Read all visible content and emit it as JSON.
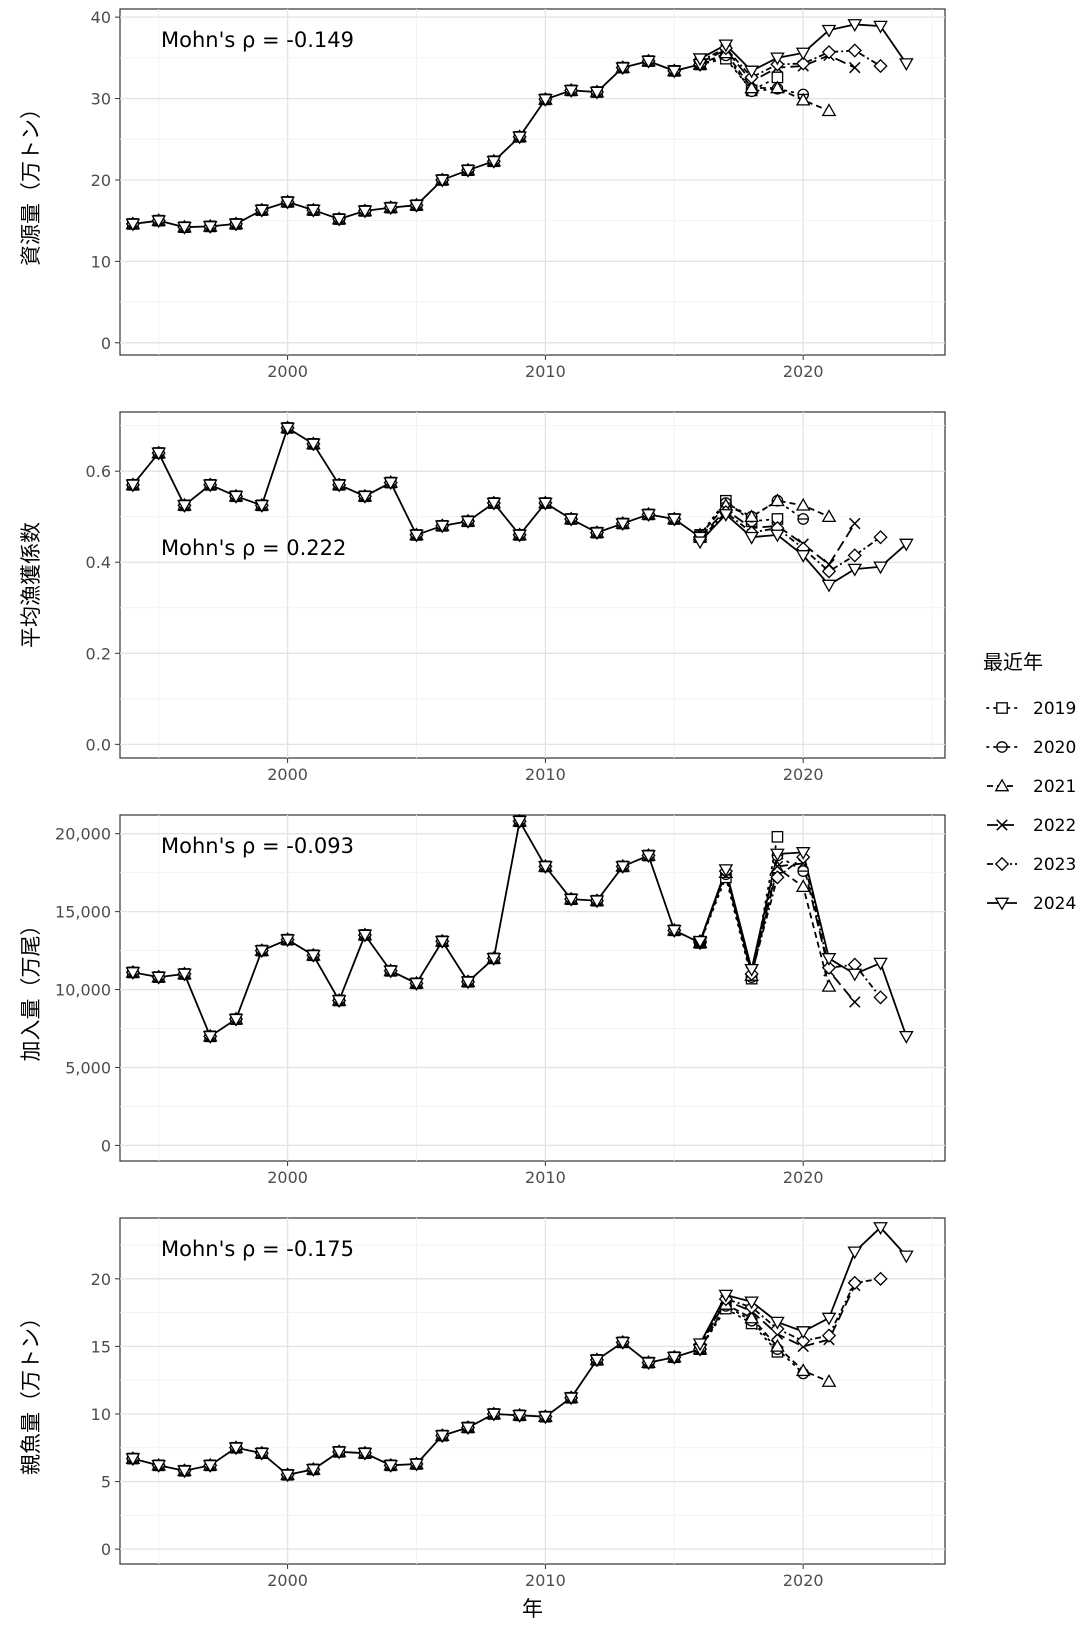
{
  "chart_data": [
    {
      "type": "line",
      "ylabel": "資源量（万トン）",
      "xlabel": "",
      "annotation": "Mohn's ρ = -0.149",
      "annotation_pos": "top-left",
      "xlim": [
        1993.5,
        2025.5
      ],
      "ylim": [
        -1.5,
        41
      ],
      "xticks": [
        2000,
        2010,
        2020
      ],
      "yticks": [
        0,
        10,
        20,
        30,
        40
      ],
      "ytick_labels": [
        "0",
        "10",
        "20",
        "30",
        "40"
      ],
      "grid": true,
      "common_x": [
        1994,
        1995,
        1996,
        1997,
        1998,
        1999,
        2000,
        2001,
        2002,
        2003,
        2004,
        2005,
        2006,
        2007,
        2008,
        2009,
        2010,
        2011,
        2012,
        2013,
        2014,
        2015,
        2016
      ],
      "common_y": [
        14.6,
        15.0,
        14.2,
        14.3,
        14.6,
        16.3,
        17.3,
        16.3,
        15.2,
        16.2,
        16.6,
        16.9,
        20.0,
        21.2,
        22.3,
        25.3,
        29.9,
        31.0,
        30.8,
        33.8,
        34.6,
        33.4,
        34.2
      ],
      "series": [
        {
          "name": "2019",
          "x": [
            2016,
            2017,
            2018,
            2019
          ],
          "y": [
            34.2,
            34.9,
            31.0,
            32.6
          ]
        },
        {
          "name": "2020",
          "x": [
            2016,
            2017,
            2018,
            2019,
            2020
          ],
          "y": [
            34.2,
            35.3,
            30.9,
            31.2,
            30.5
          ]
        },
        {
          "name": "2021",
          "x": [
            2016,
            2017,
            2018,
            2019,
            2020,
            2021
          ],
          "y": [
            34.2,
            35.6,
            31.3,
            31.3,
            29.8,
            28.5
          ]
        },
        {
          "name": "2022",
          "x": [
            2016,
            2017,
            2018,
            2019,
            2020,
            2021,
            2022
          ],
          "y": [
            34.4,
            36.0,
            32.1,
            33.8,
            34.0,
            35.3,
            33.8
          ]
        },
        {
          "name": "2023",
          "x": [
            2016,
            2017,
            2018,
            2019,
            2020,
            2021,
            2022,
            2023
          ],
          "y": [
            34.6,
            36.2,
            32.6,
            34.2,
            34.3,
            35.7,
            35.9,
            34.0
          ]
        },
        {
          "name": "2024",
          "x": [
            2016,
            2017,
            2018,
            2019,
            2020,
            2021,
            2022,
            2023,
            2024
          ],
          "y": [
            34.9,
            36.6,
            33.4,
            35.0,
            35.6,
            38.4,
            39.1,
            38.9,
            34.3
          ]
        }
      ]
    },
    {
      "type": "line",
      "ylabel": "平均漁獲係数",
      "xlabel": "",
      "annotation": "Mohn's ρ = 0.222",
      "annotation_pos": "middle-left",
      "xlim": [
        1993.5,
        2025.5
      ],
      "ylim": [
        -0.03,
        0.73
      ],
      "xticks": [
        2000,
        2010,
        2020
      ],
      "yticks": [
        0.0,
        0.2,
        0.4,
        0.6
      ],
      "ytick_labels": [
        "0.0",
        "0.2",
        "0.4",
        "0.6"
      ],
      "grid": true,
      "common_x": [
        1994,
        1995,
        1996,
        1997,
        1998,
        1999,
        2000,
        2001,
        2002,
        2003,
        2004,
        2005,
        2006,
        2007,
        2008,
        2009,
        2010,
        2011,
        2012,
        2013,
        2014,
        2015,
        2016
      ],
      "common_y": [
        0.57,
        0.64,
        0.525,
        0.57,
        0.545,
        0.525,
        0.695,
        0.66,
        0.57,
        0.545,
        0.575,
        0.46,
        0.48,
        0.49,
        0.53,
        0.46,
        0.53,
        0.495,
        0.465,
        0.485,
        0.505,
        0.495,
        0.455
      ],
      "series": [
        {
          "name": "2019",
          "x": [
            2016,
            2017,
            2018,
            2019
          ],
          "y": [
            0.46,
            0.535,
            0.49,
            0.495
          ]
        },
        {
          "name": "2020",
          "x": [
            2016,
            2017,
            2018,
            2019,
            2020
          ],
          "y": [
            0.46,
            0.53,
            0.5,
            0.535,
            0.495
          ]
        },
        {
          "name": "2021",
          "x": [
            2016,
            2017,
            2018,
            2019,
            2020,
            2021
          ],
          "y": [
            0.46,
            0.525,
            0.5,
            0.535,
            0.525,
            0.5
          ]
        },
        {
          "name": "2022",
          "x": [
            2016,
            2017,
            2018,
            2019,
            2020,
            2021,
            2022
          ],
          "y": [
            0.455,
            0.515,
            0.475,
            0.48,
            0.44,
            0.395,
            0.485
          ]
        },
        {
          "name": "2023",
          "x": [
            2016,
            2017,
            2018,
            2019,
            2020,
            2021,
            2022,
            2023
          ],
          "y": [
            0.45,
            0.51,
            0.465,
            0.475,
            0.43,
            0.38,
            0.415,
            0.455
          ]
        },
        {
          "name": "2024",
          "x": [
            2016,
            2017,
            2018,
            2019,
            2020,
            2021,
            2022,
            2023,
            2024
          ],
          "y": [
            0.445,
            0.505,
            0.455,
            0.46,
            0.415,
            0.35,
            0.385,
            0.39,
            0.44
          ]
        }
      ]
    },
    {
      "type": "line",
      "ylabel": "加入量（万尾）",
      "xlabel": "",
      "annotation": "Mohn's ρ = -0.093",
      "annotation_pos": "top-left",
      "xlim": [
        1993.5,
        2025.5
      ],
      "ylim": [
        -1000,
        21200
      ],
      "xticks": [
        2000,
        2010,
        2020
      ],
      "yticks": [
        0,
        5000,
        10000,
        15000,
        20000
      ],
      "ytick_labels": [
        "0",
        "5,000",
        "10,000",
        "15,000",
        "20,000"
      ],
      "grid": true,
      "common_x": [
        1994,
        1995,
        1996,
        1997,
        1998,
        1999,
        2000,
        2001,
        2002,
        2003,
        2004,
        2005,
        2006,
        2007,
        2008,
        2009,
        2010,
        2011,
        2012,
        2013,
        2014,
        2015,
        2016
      ],
      "common_y": [
        11100,
        10800,
        11000,
        7000,
        8100,
        12500,
        13200,
        12200,
        9300,
        13500,
        11200,
        10400,
        13100,
        10500,
        12000,
        20800,
        17900,
        15800,
        15700,
        17900,
        18600,
        13800,
        13000
      ],
      "series": [
        {
          "name": "2019",
          "x": [
            2016,
            2017,
            2018,
            2019
          ],
          "y": [
            13000,
            17200,
            10700,
            19800
          ]
        },
        {
          "name": "2020",
          "x": [
            2016,
            2017,
            2018,
            2019,
            2020
          ],
          "y": [
            13000,
            17400,
            10800,
            18600,
            17600
          ]
        },
        {
          "name": "2021",
          "x": [
            2016,
            2017,
            2018,
            2019,
            2020,
            2021
          ],
          "y": [
            13000,
            17500,
            10900,
            17800,
            16600,
            10200
          ]
        },
        {
          "name": "2022",
          "x": [
            2016,
            2017,
            2018,
            2019,
            2020,
            2021,
            2022
          ],
          "y": [
            13100,
            17600,
            11100,
            17900,
            18100,
            11200,
            9200
          ]
        },
        {
          "name": "2023",
          "x": [
            2016,
            2017,
            2018,
            2019,
            2020,
            2021,
            2022,
            2023
          ],
          "y": [
            13100,
            17600,
            11000,
            17200,
            18500,
            11400,
            11600,
            9500
          ]
        },
        {
          "name": "2024",
          "x": [
            2016,
            2017,
            2018,
            2019,
            2020,
            2021,
            2022,
            2023,
            2024
          ],
          "y": [
            13100,
            17700,
            11300,
            18700,
            18800,
            12000,
            11000,
            11700,
            7000
          ]
        }
      ]
    },
    {
      "type": "line",
      "ylabel": "親魚量（万トン）",
      "xlabel": "年",
      "annotation": "Mohn's ρ = -0.175",
      "annotation_pos": "top-left",
      "xlim": [
        1993.5,
        2025.5
      ],
      "ylim": [
        -1.1,
        24.5
      ],
      "xticks": [
        2000,
        2010,
        2020
      ],
      "yticks": [
        0,
        5,
        10,
        15,
        20
      ],
      "ytick_labels": [
        "0",
        "5",
        "10",
        "15",
        "20"
      ],
      "grid": true,
      "common_x": [
        1994,
        1995,
        1996,
        1997,
        1998,
        1999,
        2000,
        2001,
        2002,
        2003,
        2004,
        2005,
        2006,
        2007,
        2008,
        2009,
        2010,
        2011,
        2012,
        2013,
        2014,
        2015,
        2016
      ],
      "common_y": [
        6.7,
        6.2,
        5.8,
        6.2,
        7.5,
        7.1,
        5.5,
        5.9,
        7.2,
        7.1,
        6.2,
        6.3,
        8.4,
        9.0,
        10.0,
        9.9,
        9.8,
        11.2,
        14.0,
        15.3,
        13.8,
        14.2,
        14.8
      ],
      "series": [
        {
          "name": "2019",
          "x": [
            2016,
            2017,
            2018,
            2019
          ],
          "y": [
            14.8,
            17.8,
            16.7,
            14.6
          ]
        },
        {
          "name": "2020",
          "x": [
            2016,
            2017,
            2018,
            2019,
            2020
          ],
          "y": [
            14.8,
            18.0,
            16.9,
            14.8,
            13.0
          ]
        },
        {
          "name": "2021",
          "x": [
            2016,
            2017,
            2018,
            2019,
            2020,
            2021
          ],
          "y": [
            14.8,
            18.1,
            17.1,
            15.0,
            13.2,
            12.4
          ]
        },
        {
          "name": "2022",
          "x": [
            2016,
            2017,
            2018,
            2019,
            2020,
            2021,
            2022
          ],
          "y": [
            15.0,
            18.4,
            17.6,
            15.9,
            15.0,
            15.5,
            19.5
          ]
        },
        {
          "name": "2023",
          "x": [
            2016,
            2017,
            2018,
            2019,
            2020,
            2021,
            2022,
            2023
          ],
          "y": [
            15.1,
            18.5,
            17.9,
            16.3,
            15.4,
            15.8,
            19.7,
            20.0
          ]
        },
        {
          "name": "2024",
          "x": [
            2016,
            2017,
            2018,
            2019,
            2020,
            2021,
            2022,
            2023,
            2024
          ],
          "y": [
            15.2,
            18.8,
            18.3,
            16.8,
            16.1,
            17.1,
            22.0,
            23.8,
            21.7
          ]
        }
      ]
    }
  ],
  "legend": {
    "title": "最近年",
    "placement": "right",
    "items": [
      {
        "label": "2019",
        "marker": "square",
        "dash": "dotted"
      },
      {
        "label": "2020",
        "marker": "circle-dash",
        "dash": "dotted"
      },
      {
        "label": "2021",
        "marker": "triangle-up",
        "dash": "dashed"
      },
      {
        "label": "2022",
        "marker": "cross",
        "dash": "longdash"
      },
      {
        "label": "2023",
        "marker": "diamond",
        "dash": "twodash"
      },
      {
        "label": "2024",
        "marker": "triangle-down",
        "dash": "solid"
      }
    ]
  }
}
